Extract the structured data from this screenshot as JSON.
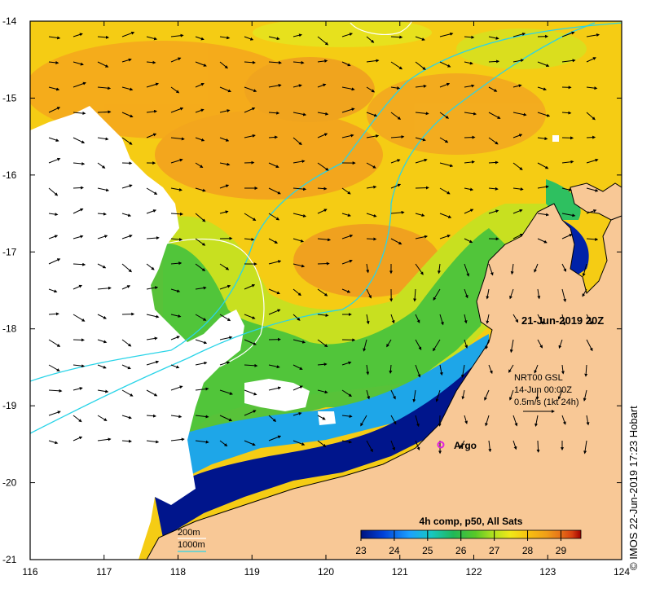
{
  "map": {
    "lon_ticks": [
      "116",
      "117",
      "118",
      "119",
      "120",
      "121",
      "122",
      "123",
      "124"
    ],
    "lat_ticks": [
      "-14",
      "-15",
      "-16",
      "-17",
      "-18",
      "-19",
      "-20",
      "-21"
    ],
    "timestamp": "21-Jun-2019 20Z",
    "current_info": {
      "line1": "NRT00 GSL",
      "line2": "14-Jun 00:00Z",
      "line3": "0.5m/s (1kt 24h)"
    },
    "argo_label": "Argo",
    "colorbar": {
      "title": "4h comp, p50, All Sats",
      "ticks": [
        "23",
        "24",
        "25",
        "26",
        "27",
        "28",
        "29"
      ]
    },
    "contour_legend": {
      "c200": "200m",
      "c1000": "1000m"
    },
    "credit": "© IMOS 22-Jun-2019 17:23 Hobart",
    "colors": {
      "land": "#f8c896",
      "cloud": "#ffffff",
      "isobath_1000": "#2ad4e8",
      "isobath_200": "#ffffff",
      "argo": "#e020e0"
    },
    "sst_palette": [
      "#00127e",
      "#0040d8",
      "#1aa0ff",
      "#18c8c0",
      "#20b858",
      "#58c828",
      "#b0e020",
      "#f0e818",
      "#f8c010",
      "#f0a018",
      "#e87818",
      "#d84010",
      "#a00000"
    ]
  }
}
